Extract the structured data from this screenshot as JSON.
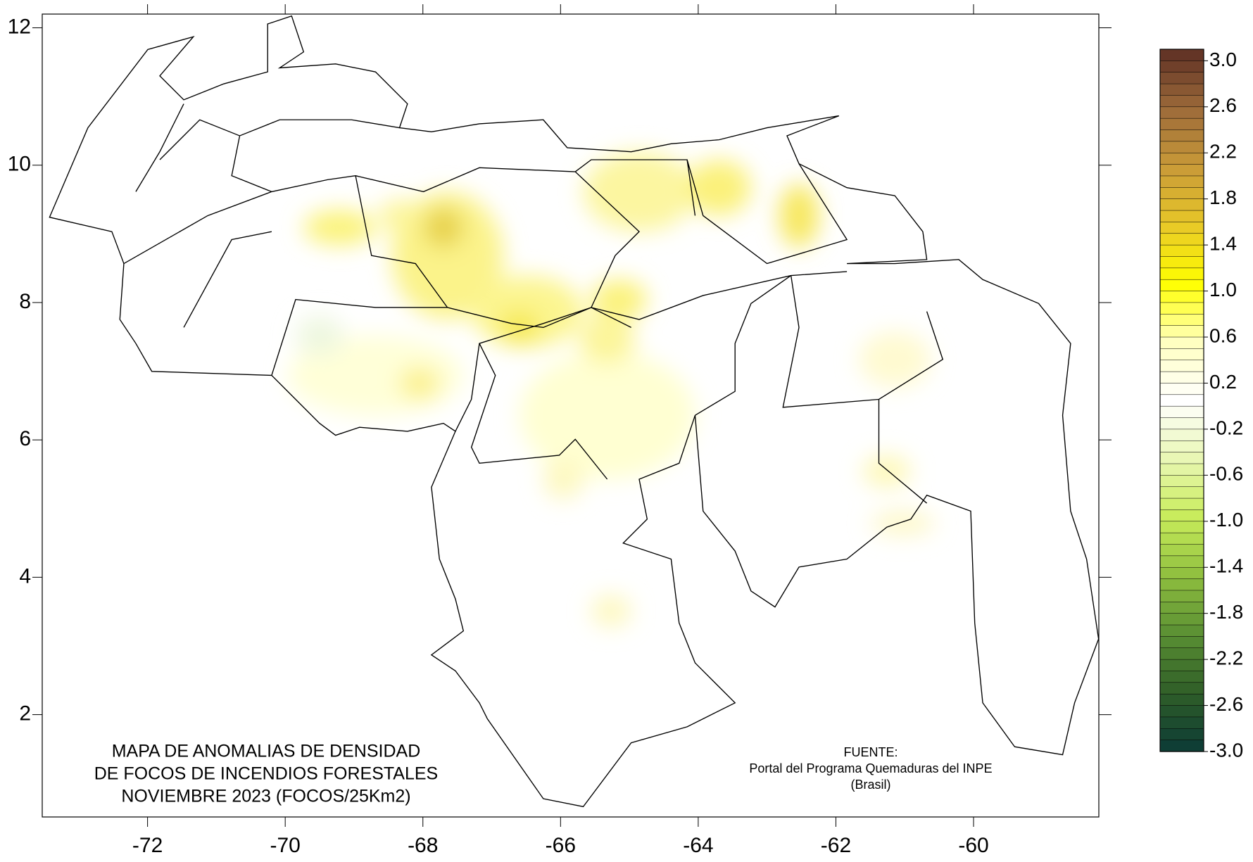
{
  "map": {
    "title": [
      "MAPA DE ANOMALIAS DE DENSIDAD",
      "DE FOCOS DE INCENDIOS FORESTALES",
      "NOVIEMBRE 2023 (FOCOS/25Km2)"
    ],
    "source": [
      "FUENTE:",
      "Portal del Programa Quemaduras del INPE",
      "(Brasil)"
    ],
    "xlim": [
      -73.53,
      -58.18
    ],
    "ylim": [
      0.51,
      12.2
    ],
    "xticks": [
      -72,
      -70,
      -68,
      -66,
      -64,
      -62,
      -60
    ],
    "yticks": [
      2,
      4,
      6,
      8,
      10,
      12
    ],
    "colorbar": {
      "clim": [
        -3,
        3.1
      ],
      "colors": [
        "#0b3b36",
        "#2f5e28",
        "#5a8f33",
        "#8fbf3f",
        "#c8ec5a",
        "#e9f7b4",
        "#ffffff",
        "#ffffc0",
        "#ffff00",
        "#e8c828",
        "#c99a38",
        "#9c6a3a",
        "#5e2f24"
      ],
      "ticks": [
        {
          "value": 3,
          "label": "3.0"
        },
        2.6,
        2.2,
        1.8,
        1.4,
        {
          "value": 1,
          "label": "1.0"
        },
        0.6,
        0.2,
        -0.2,
        -0.6,
        {
          "value": -1,
          "label": "-1.0"
        },
        -1.4,
        -1.8,
        -2.2,
        -2.6,
        {
          "value": -3,
          "label": "-3.0"
        }
      ]
    }
  }
}
